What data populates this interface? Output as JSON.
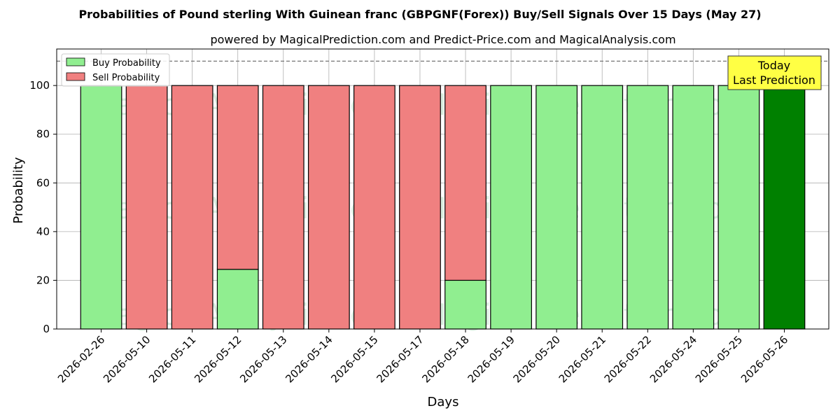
{
  "chart_data": {
    "type": "bar",
    "title": "Probabilities of Pound sterling With Guinean franc (GBPGNF(Forex)) Buy/Sell Signals Over 15 Days (May 27)",
    "subtitle": "powered by MagicalPrediction.com and Predict-Price.com and MagicalAnalysis.com",
    "xlabel": "Days",
    "ylabel": "Probability",
    "ylim": [
      0,
      115
    ],
    "yticks": [
      0,
      20,
      40,
      60,
      80,
      100
    ],
    "reference_line": 110,
    "grid": true,
    "legend_position": "top-left",
    "categories": [
      "2026-02-26",
      "2026-05-10",
      "2026-05-11",
      "2026-05-12",
      "2026-05-13",
      "2026-05-14",
      "2026-05-15",
      "2026-05-17",
      "2026-05-18",
      "2026-05-19",
      "2026-05-20",
      "2026-05-21",
      "2026-05-22",
      "2026-05-24",
      "2026-05-25",
      "2026-05-26"
    ],
    "series": [
      {
        "name": "Buy Probability",
        "color": "#90ee90",
        "values": [
          100,
          0,
          0,
          24.5,
          0,
          0,
          0,
          0,
          20,
          100,
          100,
          100,
          100,
          100,
          100,
          100
        ]
      },
      {
        "name": "Sell Probability",
        "color": "#f08080",
        "values": [
          0,
          100,
          100,
          75.5,
          100,
          100,
          100,
          100,
          80,
          0,
          0,
          0,
          0,
          0,
          0,
          0
        ]
      }
    ],
    "highlight": {
      "category": "2026-05-26",
      "color": "#008000"
    },
    "annotation": {
      "line1": "Today",
      "line2": "Last Prediction",
      "background": "#ffff44"
    },
    "watermarks": [
      "MagicalAnalysis.com",
      "MagicalPrediction.com"
    ]
  }
}
